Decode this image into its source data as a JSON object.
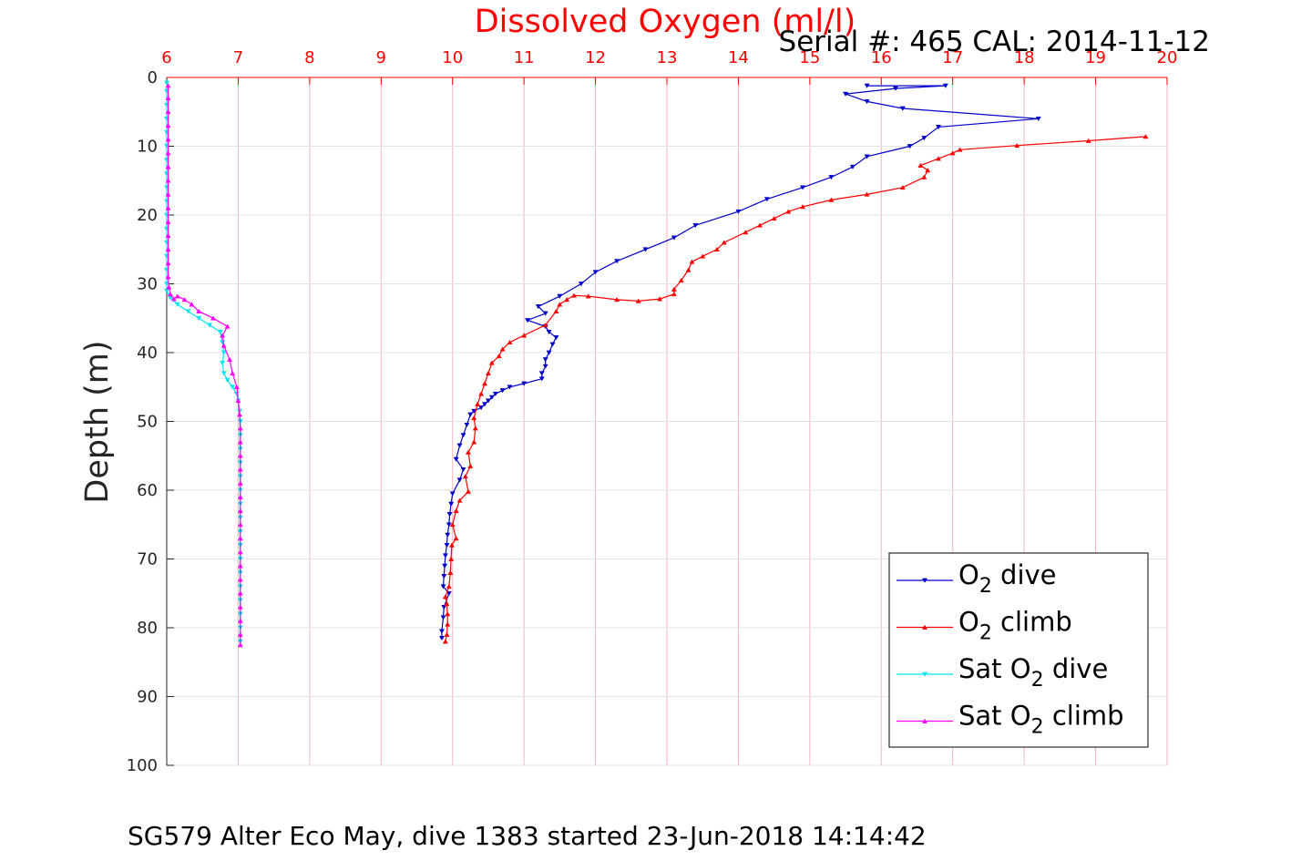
{
  "chart_data": {
    "type": "line",
    "title": "Dissolved Oxygen (ml/l)",
    "subtitle": "Serial #: 465  CAL: 2014-11-12",
    "footer": "SG579 Alter Eco May, dive 1383 started 23-Jun-2018 14:14:42",
    "xlabel": "",
    "ylabel": "Depth (m)",
    "xlim": [
      6,
      20
    ],
    "ylim": [
      0,
      100
    ],
    "y_reversed": true,
    "x_axis_position": "top",
    "x_ticks": [
      "6",
      "7",
      "8",
      "9",
      "10",
      "11",
      "12",
      "13",
      "14",
      "15",
      "16",
      "17",
      "18",
      "19",
      "20"
    ],
    "y_ticks": [
      "0",
      "10",
      "20",
      "30",
      "40",
      "50",
      "60",
      "70",
      "80",
      "90",
      "100"
    ],
    "grid": true,
    "legend_position": "bottom-right",
    "series": [
      {
        "name": "O2 dive",
        "legend": {
          "pre": "O",
          "sub": "2",
          "post": " dive"
        },
        "color": "#0000cc",
        "marker": "triangle-down",
        "points": [
          [
            15.8,
            1.2
          ],
          [
            16.9,
            1.2
          ],
          [
            16.2,
            1.6
          ],
          [
            15.5,
            2.4
          ],
          [
            15.8,
            3.5
          ],
          [
            16.3,
            4.5
          ],
          [
            18.2,
            6.0
          ],
          [
            16.8,
            7.2
          ],
          [
            16.6,
            8.8
          ],
          [
            16.4,
            10.0
          ],
          [
            15.8,
            11.5
          ],
          [
            15.6,
            13.0
          ],
          [
            15.3,
            14.5
          ],
          [
            14.9,
            16.0
          ],
          [
            14.4,
            17.7
          ],
          [
            14.0,
            19.5
          ],
          [
            13.4,
            21.5
          ],
          [
            13.1,
            23.3
          ],
          [
            12.7,
            25.0
          ],
          [
            12.3,
            26.7
          ],
          [
            12.0,
            28.3
          ],
          [
            11.8,
            30.0
          ],
          [
            11.5,
            31.8
          ],
          [
            11.2,
            33.3
          ],
          [
            11.3,
            34.3
          ],
          [
            11.05,
            35.3
          ],
          [
            11.3,
            36.2
          ],
          [
            11.35,
            37.0
          ],
          [
            11.45,
            37.8
          ],
          [
            11.4,
            38.8
          ],
          [
            11.35,
            40.0
          ],
          [
            11.3,
            41.0
          ],
          [
            11.3,
            42.0
          ],
          [
            11.25,
            43.0
          ],
          [
            11.25,
            43.8
          ],
          [
            11.0,
            44.5
          ],
          [
            10.8,
            45.0
          ],
          [
            10.7,
            45.5
          ],
          [
            10.6,
            46.0
          ],
          [
            10.55,
            46.5
          ],
          [
            10.5,
            47.0
          ],
          [
            10.45,
            47.5
          ],
          [
            10.4,
            48.0
          ],
          [
            10.3,
            48.5
          ],
          [
            10.25,
            49.0
          ],
          [
            10.2,
            50.5
          ],
          [
            10.15,
            52.0
          ],
          [
            10.1,
            53.5
          ],
          [
            10.05,
            55.5
          ],
          [
            10.15,
            57.0
          ],
          [
            10.1,
            58.5
          ],
          [
            10.0,
            60.5
          ],
          [
            9.98,
            62.0
          ],
          [
            9.96,
            63.5
          ],
          [
            9.95,
            65.0
          ],
          [
            9.93,
            66.5
          ],
          [
            9.92,
            68.0
          ],
          [
            9.9,
            69.5
          ],
          [
            9.89,
            71.0
          ],
          [
            9.88,
            72.5
          ],
          [
            9.87,
            74.0
          ],
          [
            9.95,
            75.0
          ],
          [
            9.88,
            77.0
          ],
          [
            9.87,
            78.5
          ],
          [
            9.85,
            80.5
          ],
          [
            9.85,
            81.5
          ]
        ]
      },
      {
        "name": "O2 climb",
        "legend": {
          "pre": "O",
          "sub": "2",
          "post": " climb"
        },
        "color": "#ff0000",
        "marker": "triangle-up",
        "points": [
          [
            9.9,
            82.0
          ],
          [
            9.92,
            81.0
          ],
          [
            9.93,
            79.5
          ],
          [
            9.93,
            78.0
          ],
          [
            9.92,
            76.5
          ],
          [
            9.9,
            75.5
          ],
          [
            9.95,
            74.0
          ],
          [
            9.97,
            72.0
          ],
          [
            9.98,
            70.0
          ],
          [
            9.99,
            68.0
          ],
          [
            10.05,
            67.0
          ],
          [
            10.0,
            65.0
          ],
          [
            10.05,
            63.0
          ],
          [
            10.1,
            61.5
          ],
          [
            10.22,
            60.2
          ],
          [
            10.18,
            58.0
          ],
          [
            10.25,
            56.5
          ],
          [
            10.22,
            54.5
          ],
          [
            10.3,
            53.0
          ],
          [
            10.32,
            51.0
          ],
          [
            10.3,
            49.5
          ],
          [
            10.35,
            47.5
          ],
          [
            10.4,
            46.0
          ],
          [
            10.45,
            44.5
          ],
          [
            10.5,
            43.0
          ],
          [
            10.55,
            41.5
          ],
          [
            10.65,
            40.5
          ],
          [
            10.7,
            39.5
          ],
          [
            10.8,
            38.5
          ],
          [
            11.0,
            37.5
          ],
          [
            11.3,
            36.0
          ],
          [
            11.45,
            34.0
          ],
          [
            11.5,
            33.0
          ],
          [
            11.6,
            32.3
          ],
          [
            11.7,
            31.7
          ],
          [
            11.9,
            31.8
          ],
          [
            12.3,
            32.3
          ],
          [
            12.6,
            32.5
          ],
          [
            12.9,
            32.2
          ],
          [
            13.1,
            31.5
          ],
          [
            13.1,
            30.8
          ],
          [
            13.2,
            29.5
          ],
          [
            13.3,
            28.0
          ],
          [
            13.35,
            26.8
          ],
          [
            13.5,
            26.0
          ],
          [
            13.7,
            25.0
          ],
          [
            13.8,
            24.0
          ],
          [
            14.1,
            22.5
          ],
          [
            14.3,
            21.5
          ],
          [
            14.5,
            20.5
          ],
          [
            14.7,
            19.5
          ],
          [
            14.9,
            18.8
          ],
          [
            15.3,
            17.8
          ],
          [
            15.8,
            17.0
          ],
          [
            16.3,
            16.0
          ],
          [
            16.6,
            14.5
          ],
          [
            16.65,
            13.5
          ],
          [
            16.55,
            12.8
          ],
          [
            16.8,
            11.8
          ],
          [
            17.0,
            11.0
          ],
          [
            17.1,
            10.5
          ],
          [
            17.9,
            9.9
          ],
          [
            18.9,
            9.2
          ],
          [
            19.7,
            8.6
          ]
        ]
      },
      {
        "name": "Sat O2 dive",
        "legend": {
          "pre": "Sat O",
          "sub": "2",
          "post": " dive"
        },
        "color": "#00e5ee",
        "marker": "triangle-down",
        "points": [
          [
            6.0,
            0.8
          ],
          [
            6.0,
            2
          ],
          [
            6.0,
            4
          ],
          [
            6.0,
            6
          ],
          [
            6.0,
            8
          ],
          [
            6.0,
            10
          ],
          [
            6.0,
            12
          ],
          [
            6.0,
            14
          ],
          [
            6.0,
            16
          ],
          [
            6.0,
            18
          ],
          [
            6.0,
            20
          ],
          [
            6.0,
            22
          ],
          [
            6.0,
            24
          ],
          [
            6.0,
            26
          ],
          [
            6.0,
            28
          ],
          [
            6.0,
            30
          ],
          [
            6.0,
            31
          ],
          [
            6.05,
            32
          ],
          [
            6.15,
            33.0
          ],
          [
            6.3,
            34.0
          ],
          [
            6.45,
            35.0
          ],
          [
            6.6,
            36.0
          ],
          [
            6.75,
            37.0
          ],
          [
            6.78,
            38.5
          ],
          [
            6.8,
            40.0
          ],
          [
            6.78,
            41.5
          ],
          [
            6.8,
            43.0
          ],
          [
            6.85,
            44.0
          ],
          [
            6.92,
            45.0
          ],
          [
            6.98,
            46.0
          ],
          [
            7.0,
            47.0
          ],
          [
            7.02,
            48.5
          ],
          [
            7.03,
            50
          ],
          [
            7.03,
            52
          ],
          [
            7.03,
            54
          ],
          [
            7.03,
            56
          ],
          [
            7.03,
            58
          ],
          [
            7.03,
            60
          ],
          [
            7.03,
            62
          ],
          [
            7.03,
            64
          ],
          [
            7.03,
            66
          ],
          [
            7.03,
            68
          ],
          [
            7.03,
            70
          ],
          [
            7.03,
            72
          ],
          [
            7.03,
            74
          ],
          [
            7.03,
            76
          ],
          [
            7.03,
            78
          ],
          [
            7.03,
            80
          ],
          [
            7.03,
            82
          ]
        ]
      },
      {
        "name": "Sat O2 climb",
        "legend": {
          "pre": "Sat O",
          "sub": "2",
          "post": " climb"
        },
        "color": "#ff00ff",
        "marker": "triangle-up",
        "points": [
          [
            7.03,
            82.5
          ],
          [
            7.03,
            81
          ],
          [
            7.03,
            79
          ],
          [
            7.03,
            77
          ],
          [
            7.03,
            75
          ],
          [
            7.03,
            73
          ],
          [
            7.03,
            71
          ],
          [
            7.03,
            69
          ],
          [
            7.03,
            67
          ],
          [
            7.03,
            65
          ],
          [
            7.03,
            63
          ],
          [
            7.03,
            61
          ],
          [
            7.03,
            59
          ],
          [
            7.03,
            57
          ],
          [
            7.03,
            55
          ],
          [
            7.03,
            53
          ],
          [
            7.03,
            51
          ],
          [
            7.02,
            49
          ],
          [
            7.0,
            47
          ],
          [
            6.98,
            45
          ],
          [
            6.92,
            43
          ],
          [
            6.88,
            41
          ],
          [
            6.8,
            39
          ],
          [
            6.78,
            37.5
          ],
          [
            6.85,
            36.2
          ],
          [
            6.65,
            35.0
          ],
          [
            6.45,
            34.0
          ],
          [
            6.35,
            33.0
          ],
          [
            6.25,
            32.3
          ],
          [
            6.15,
            31.8
          ],
          [
            6.1,
            32.2
          ],
          [
            6.05,
            31.5
          ],
          [
            6.03,
            30.5
          ],
          [
            6.02,
            29
          ],
          [
            6.02,
            27
          ],
          [
            6.02,
            25
          ],
          [
            6.02,
            23
          ],
          [
            6.02,
            21
          ],
          [
            6.02,
            19
          ],
          [
            6.02,
            17
          ],
          [
            6.02,
            15
          ],
          [
            6.02,
            13
          ],
          [
            6.02,
            11
          ],
          [
            6.02,
            9
          ],
          [
            6.02,
            7
          ],
          [
            6.02,
            5
          ],
          [
            6.02,
            3
          ],
          [
            6.02,
            1.2
          ]
        ]
      }
    ]
  }
}
